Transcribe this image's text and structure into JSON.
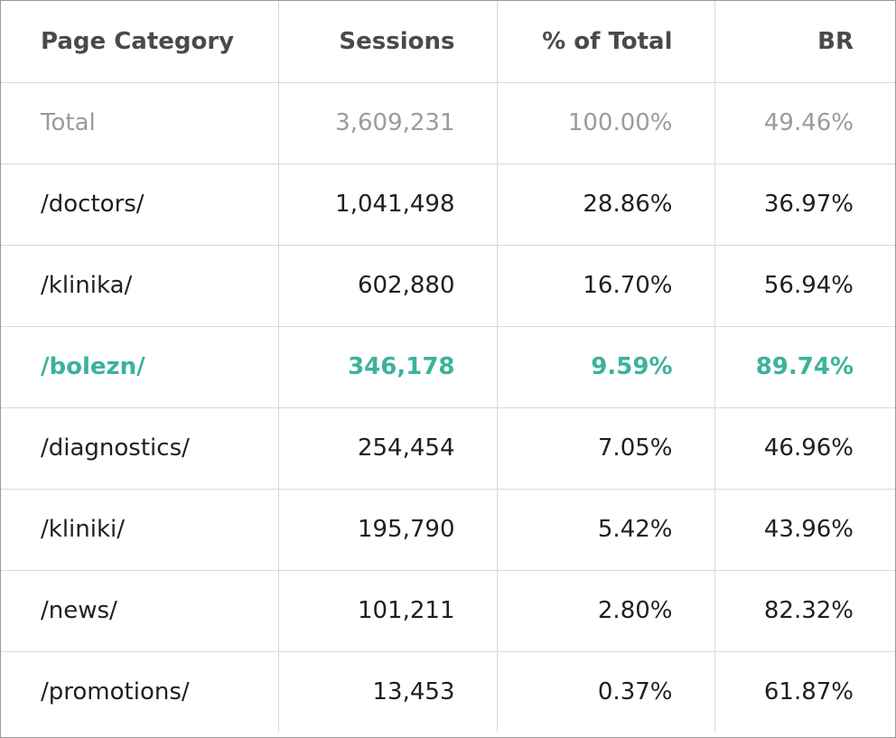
{
  "table": {
    "headers": [
      "Page Category",
      "Sessions",
      "% of Total",
      "BR"
    ],
    "total": {
      "category": "Total",
      "sessions": "3,609,231",
      "pct_total": "100.00%",
      "br": "49.46%"
    },
    "rows": [
      {
        "category": "/doctors/",
        "sessions": "1,041,498",
        "pct_total": "28.86%",
        "br": "36.97%"
      },
      {
        "category": "/klinika/",
        "sessions": "602,880",
        "pct_total": "16.70%",
        "br": "56.94%"
      },
      {
        "category": "/bolezn/",
        "sessions": "346,178",
        "pct_total": "9.59%",
        "br": "89.74%"
      },
      {
        "category": "/diagnostics/",
        "sessions": "254,454",
        "pct_total": "7.05%",
        "br": "46.96%"
      },
      {
        "category": "/kliniki/",
        "sessions": "195,790",
        "pct_total": "5.42%",
        "br": "43.96%"
      },
      {
        "category": "/news/",
        "sessions": "101,211",
        "pct_total": "2.80%",
        "br": "82.32%"
      },
      {
        "category": "/promotions/",
        "sessions": "13,453",
        "pct_total": "0.37%",
        "br": "61.87%"
      }
    ]
  },
  "colors": {
    "highlight": "#3bb39a",
    "total_text": "#9b9b9b",
    "header_text": "#4a4a4a",
    "body_text": "#1f1f1f",
    "grid": "#d9d9d9"
  }
}
